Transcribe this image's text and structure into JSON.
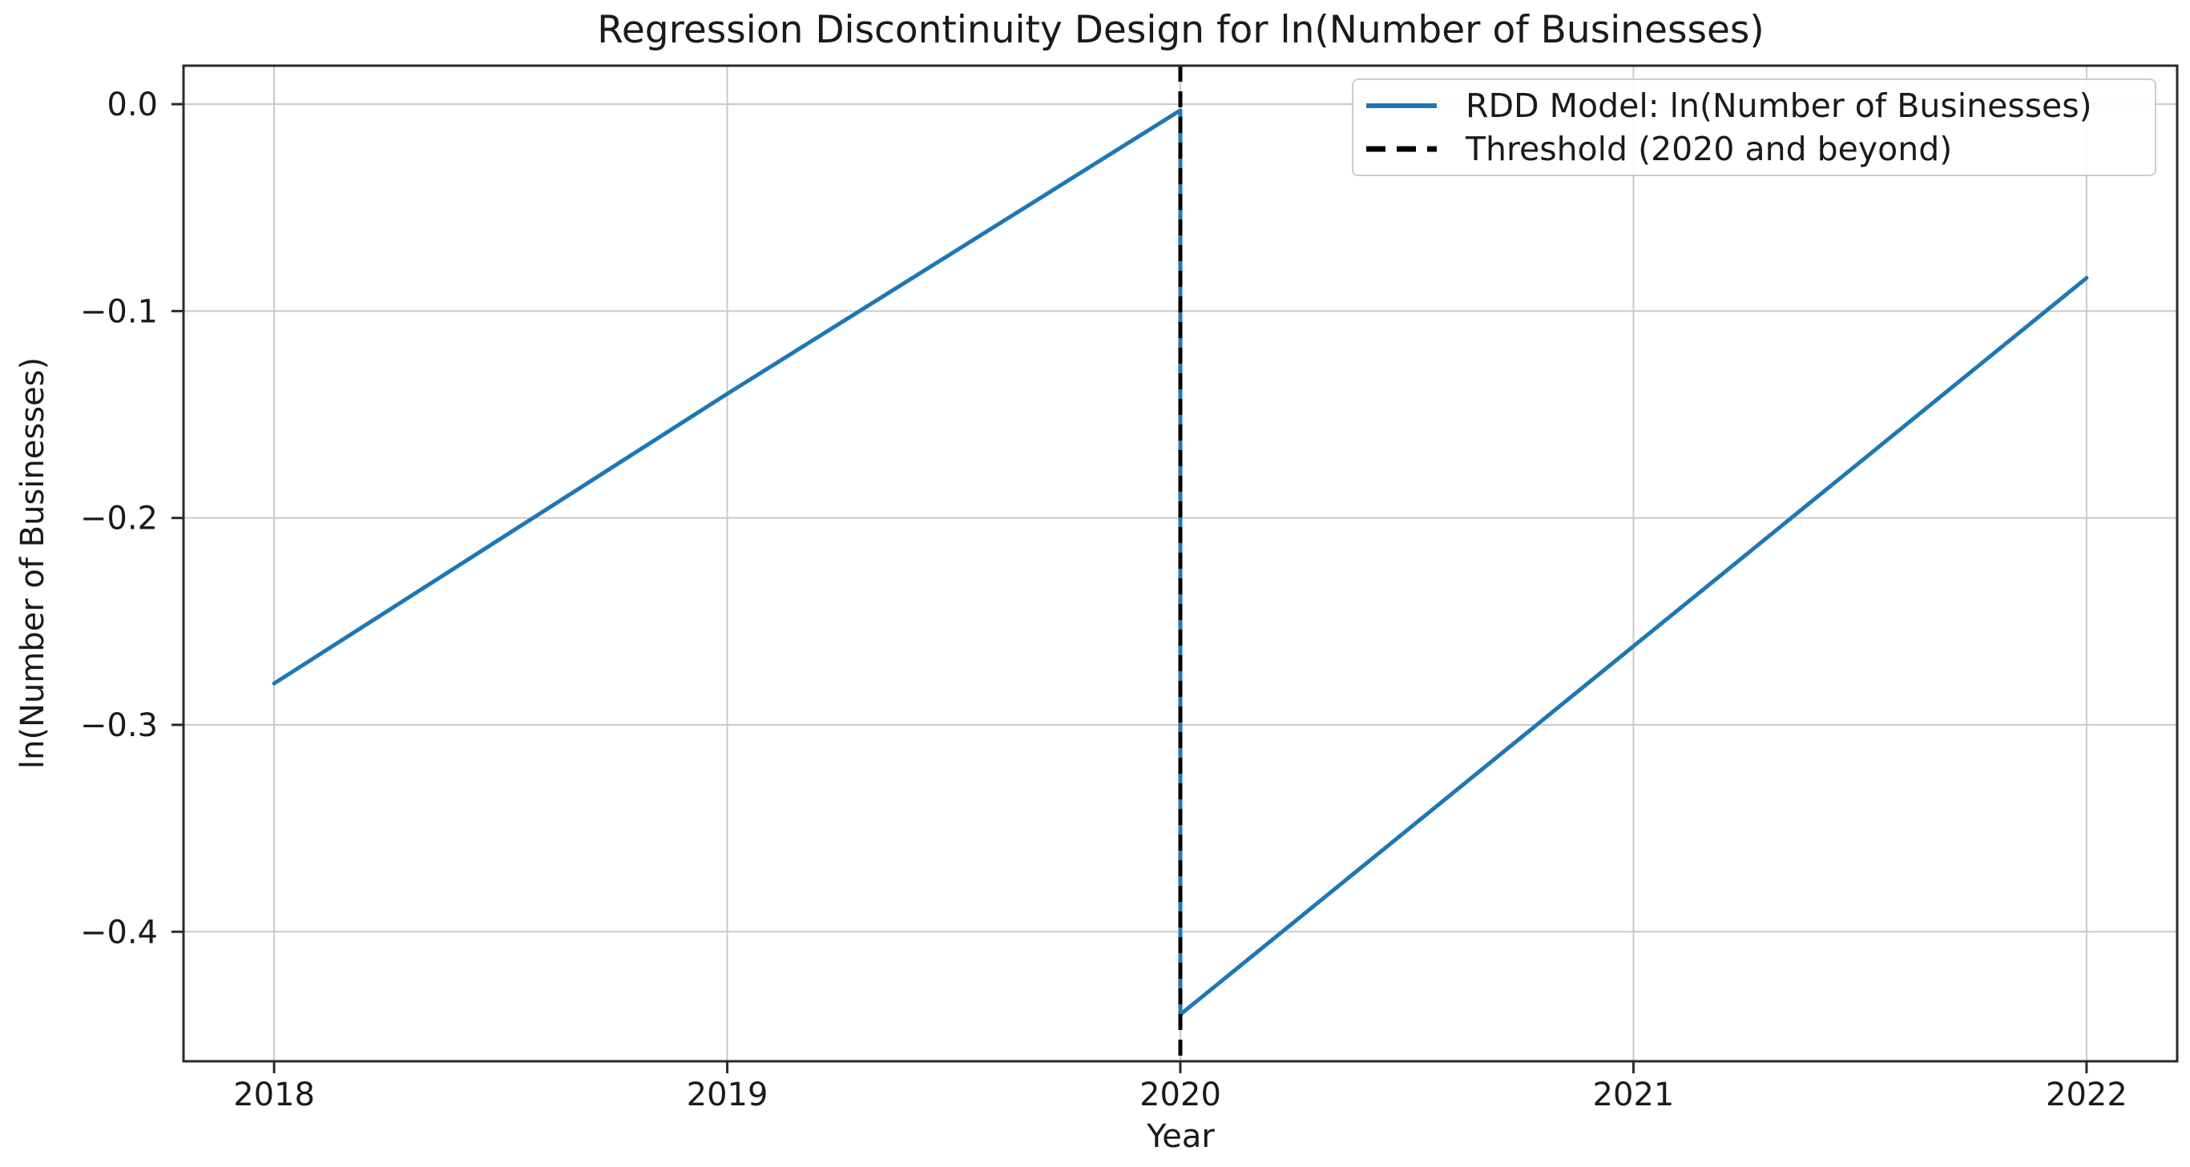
{
  "figure": {
    "background": "#ffffff"
  },
  "chart_data": {
    "type": "line",
    "title": "Regression Discontinuity Design for ln(Number of Businesses)",
    "xlabel": "Year",
    "ylabel": "ln(Number of Businesses)",
    "xlim": [
      2017.8,
      2022.2
    ],
    "ylim": [
      -0.4626,
      0.0186
    ],
    "grid": true,
    "legend_position": "upper right",
    "x_ticks": {
      "values": [
        2018,
        2019,
        2020,
        2021,
        2022
      ],
      "labels": [
        "2018",
        "2019",
        "2020",
        "2021",
        "2022"
      ]
    },
    "y_ticks": {
      "values": [
        0.0,
        -0.1,
        -0.2,
        -0.3,
        -0.4
      ],
      "labels": [
        "0.0",
        "−0.1",
        "−0.2",
        "−0.3",
        "−0.4"
      ]
    },
    "series": [
      {
        "name": "RDD Model: ln(Number of Businesses)",
        "kind": "line",
        "color": "#1f77b4",
        "line_style": "solid",
        "line_width": 5,
        "points": [
          [
            2018,
            -0.28
          ],
          [
            2019,
            -0.14
          ],
          [
            2020,
            -0.003
          ],
          [
            2020,
            -0.44
          ],
          [
            2021,
            -0.262
          ],
          [
            2022,
            -0.084
          ]
        ],
        "note": "discontinuity drop at x=2020 from -0.003 to -0.44"
      },
      {
        "name": "Threshold (2020 and beyond)",
        "kind": "vline",
        "color": "#000000",
        "line_style": "dashed",
        "line_width": 5,
        "x": 2020
      }
    ],
    "colors": {
      "grid": "#c9c9c9",
      "spine": "#2a2a2a",
      "text": "#1a1a1a",
      "line": "#1f77b4",
      "threshold": "#000000"
    }
  }
}
